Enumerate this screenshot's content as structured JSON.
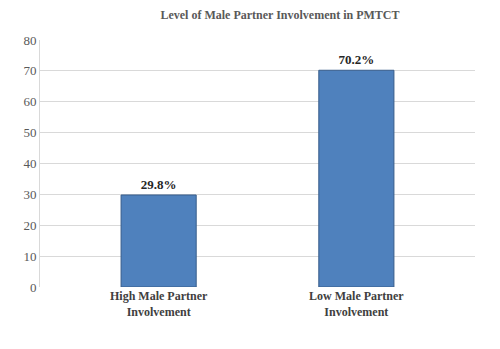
{
  "chart_data": {
    "type": "bar",
    "title": "Level of Male Partner Involvement in PMTCT",
    "categories": [
      "High Male Partner Involvement",
      "Low Male Partner Involvement"
    ],
    "values": [
      29.8,
      70.2
    ],
    "value_labels": [
      "29.8%",
      "70.2%"
    ],
    "data_labels": true,
    "color": "#4f81bd",
    "ylim": [
      0,
      80
    ],
    "yticks": [
      0,
      10,
      20,
      30,
      40,
      50,
      60,
      70,
      80
    ],
    "grid": true
  }
}
